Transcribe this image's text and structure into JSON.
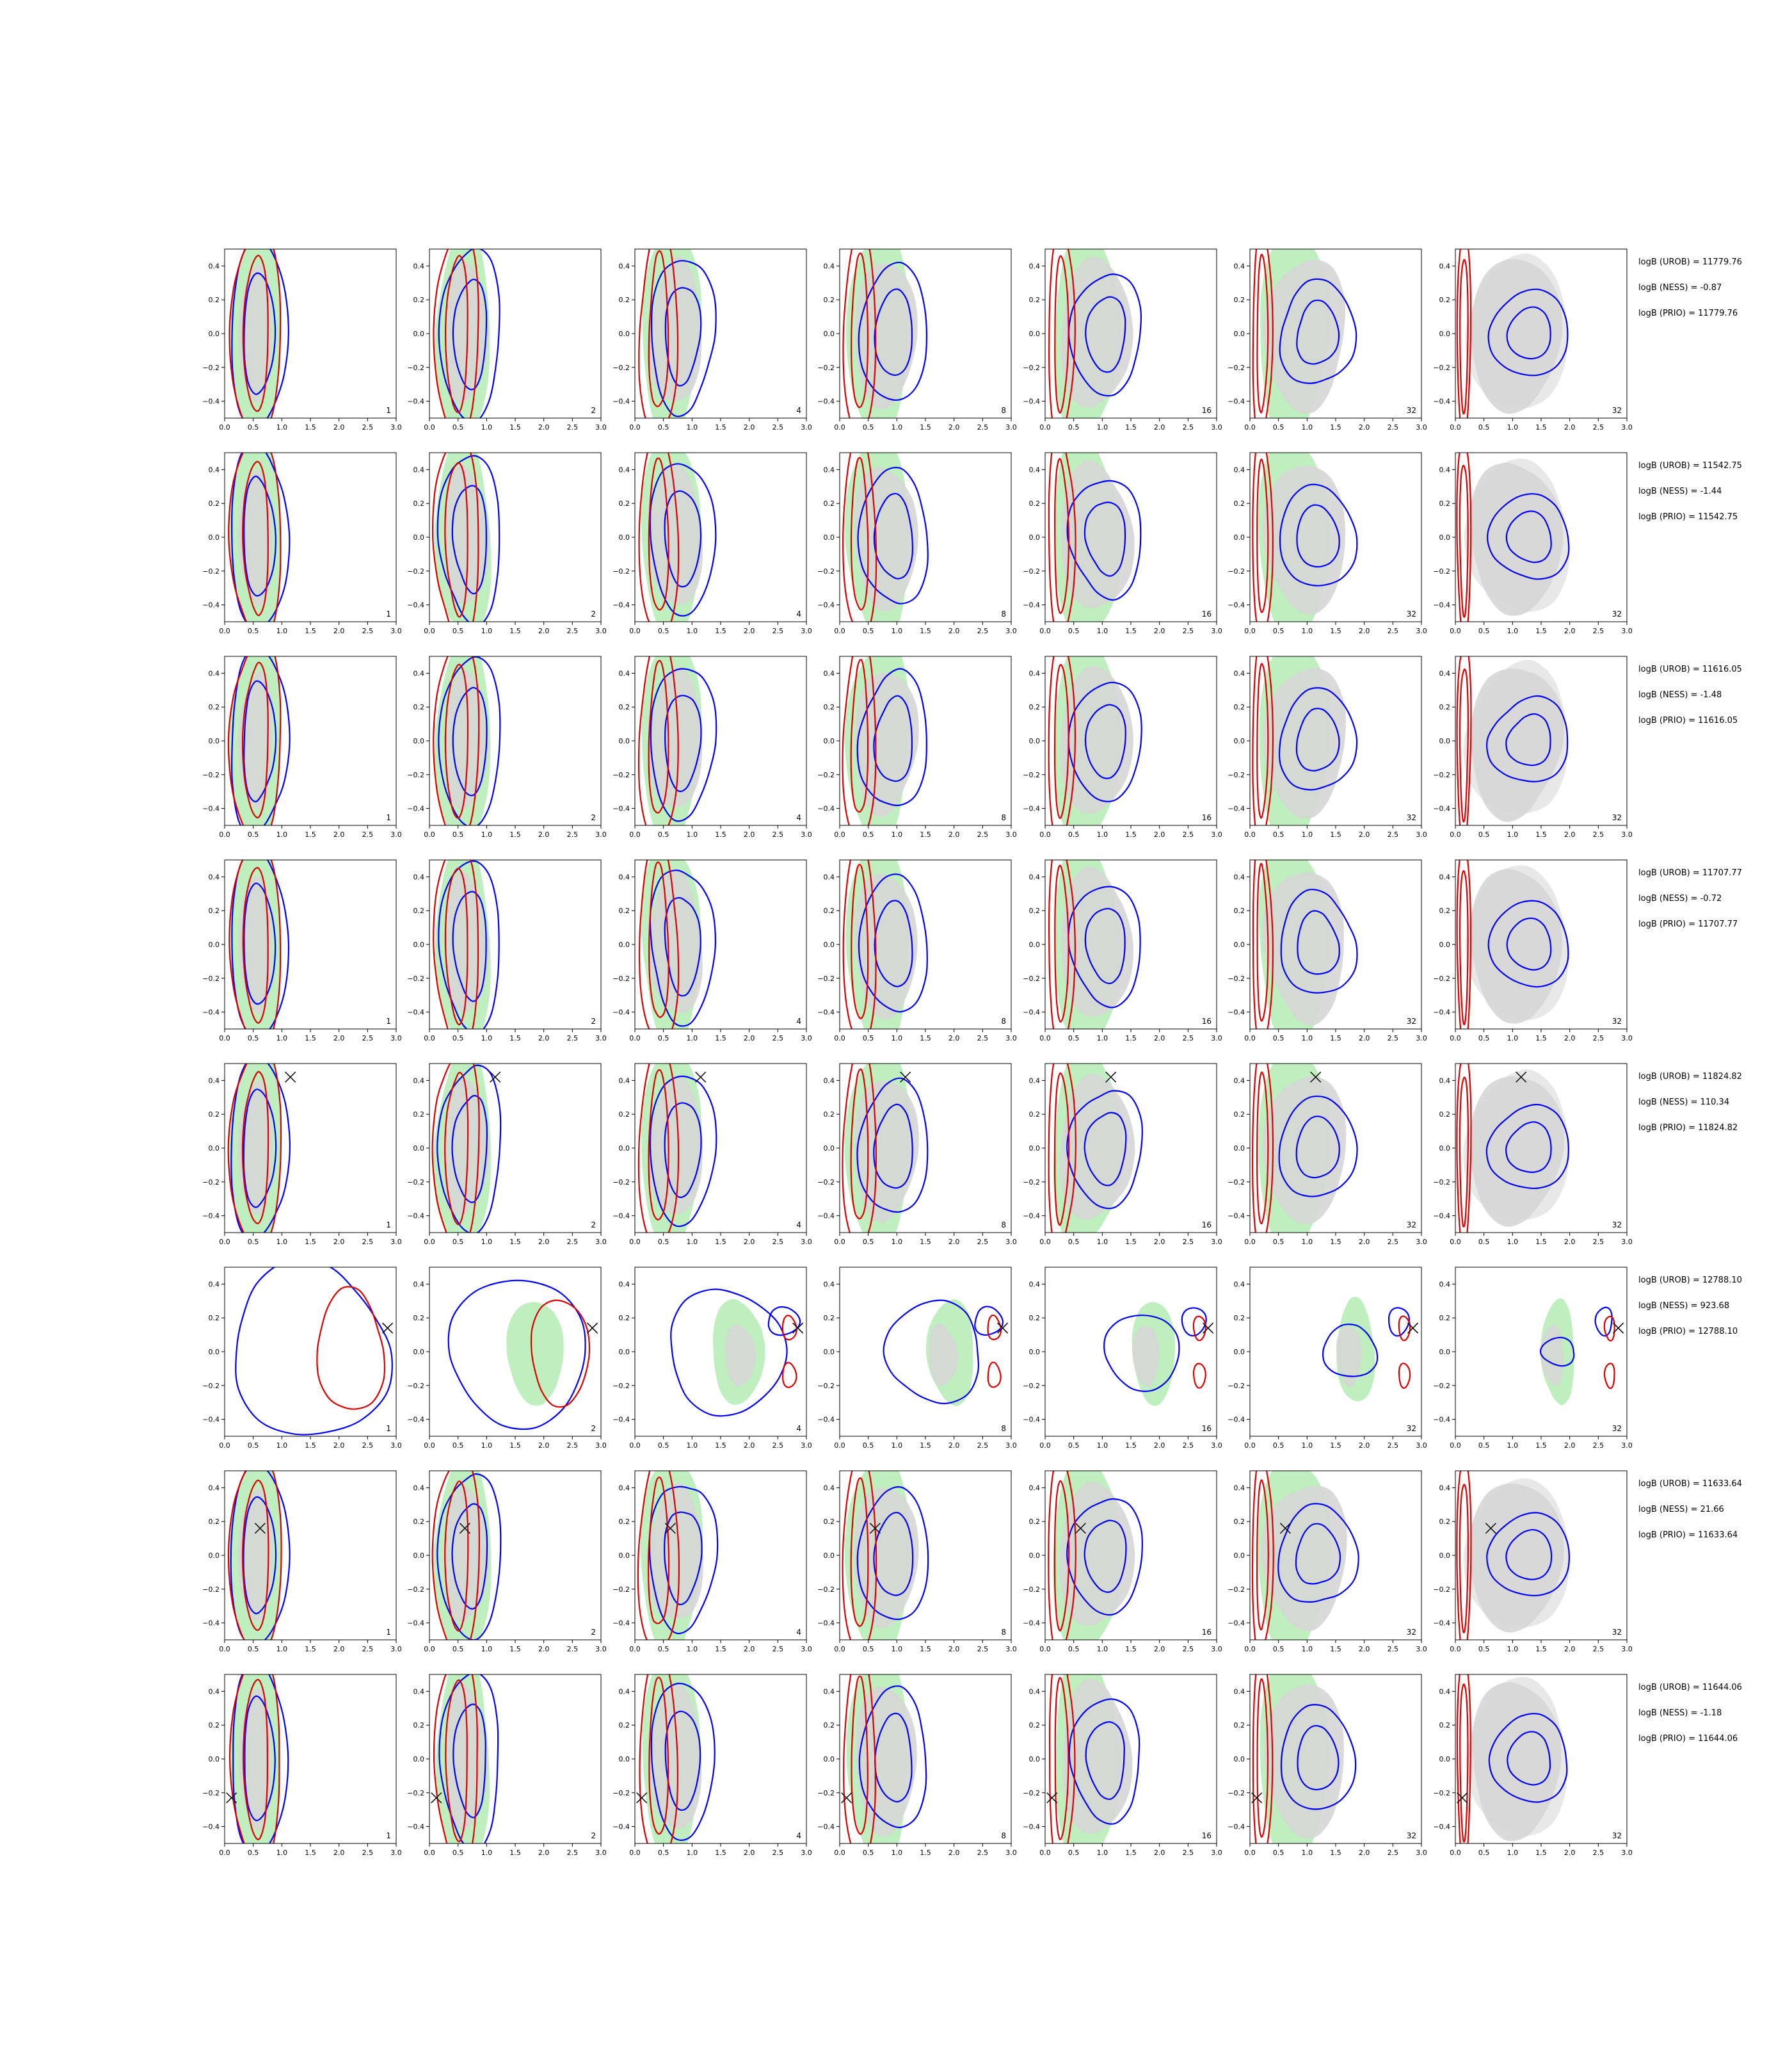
{
  "chart_data": {
    "type": "contour-grid",
    "rows": 8,
    "cols": 7,
    "xlim": [
      0.0,
      3.0
    ],
    "ylim": [
      -0.5,
      0.5
    ],
    "x_ticks": [
      "0.0",
      "0.5",
      "1.0",
      "1.5",
      "2.0",
      "2.5",
      "3.0"
    ],
    "y_ticks": [
      "0.4",
      "0.2",
      "0.0",
      "−0.2",
      "−0.4"
    ],
    "col_labels": [
      "1",
      "2",
      "4",
      "8",
      "16",
      "32",
      "32"
    ],
    "colors": {
      "blue": "#0000ff",
      "red": "#dd0000",
      "green_fill": "#bfeebf",
      "gray_fill": "#d6d6d6",
      "light_gray": "#e8e8e8"
    },
    "annotations": [
      [
        "logB (UROB) = 11779.76",
        "logB (NESS) = -0.87",
        "logB (PRIO) = 11779.76"
      ],
      [
        "logB (UROB) = 11542.75",
        "logB (NESS) = -1.44",
        "logB (PRIO) = 11542.75"
      ],
      [
        "logB (UROB) = 11616.05",
        "logB (NESS) = -1.48",
        "logB (PRIO) = 11616.05"
      ],
      [
        "logB (UROB) = 11707.77",
        "logB (NESS) = -0.72",
        "logB (PRIO) = 11707.77"
      ],
      [
        "logB (UROB) = 11824.82",
        "logB (NESS) = 110.34",
        "logB (PRIO) = 11824.82"
      ],
      [
        "logB (UROB) = 12788.10",
        "logB (NESS) = 923.68",
        "logB (PRIO) = 12788.10"
      ],
      [
        "logB (UROB) = 11633.64",
        "logB (NESS) = 21.66",
        "logB (PRIO) = 11633.64"
      ],
      [
        "logB (UROB) = 11644.06",
        "logB (NESS) = -1.18",
        "logB (PRIO) = 11644.06"
      ]
    ],
    "true_points": [
      null,
      null,
      null,
      null,
      {
        "x": 1.15,
        "y": 0.42
      },
      {
        "x": 2.85,
        "y": 0.14
      },
      {
        "x": 0.62,
        "y": 0.16
      },
      {
        "x": 0.12,
        "y": -0.23
      }
    ]
  }
}
